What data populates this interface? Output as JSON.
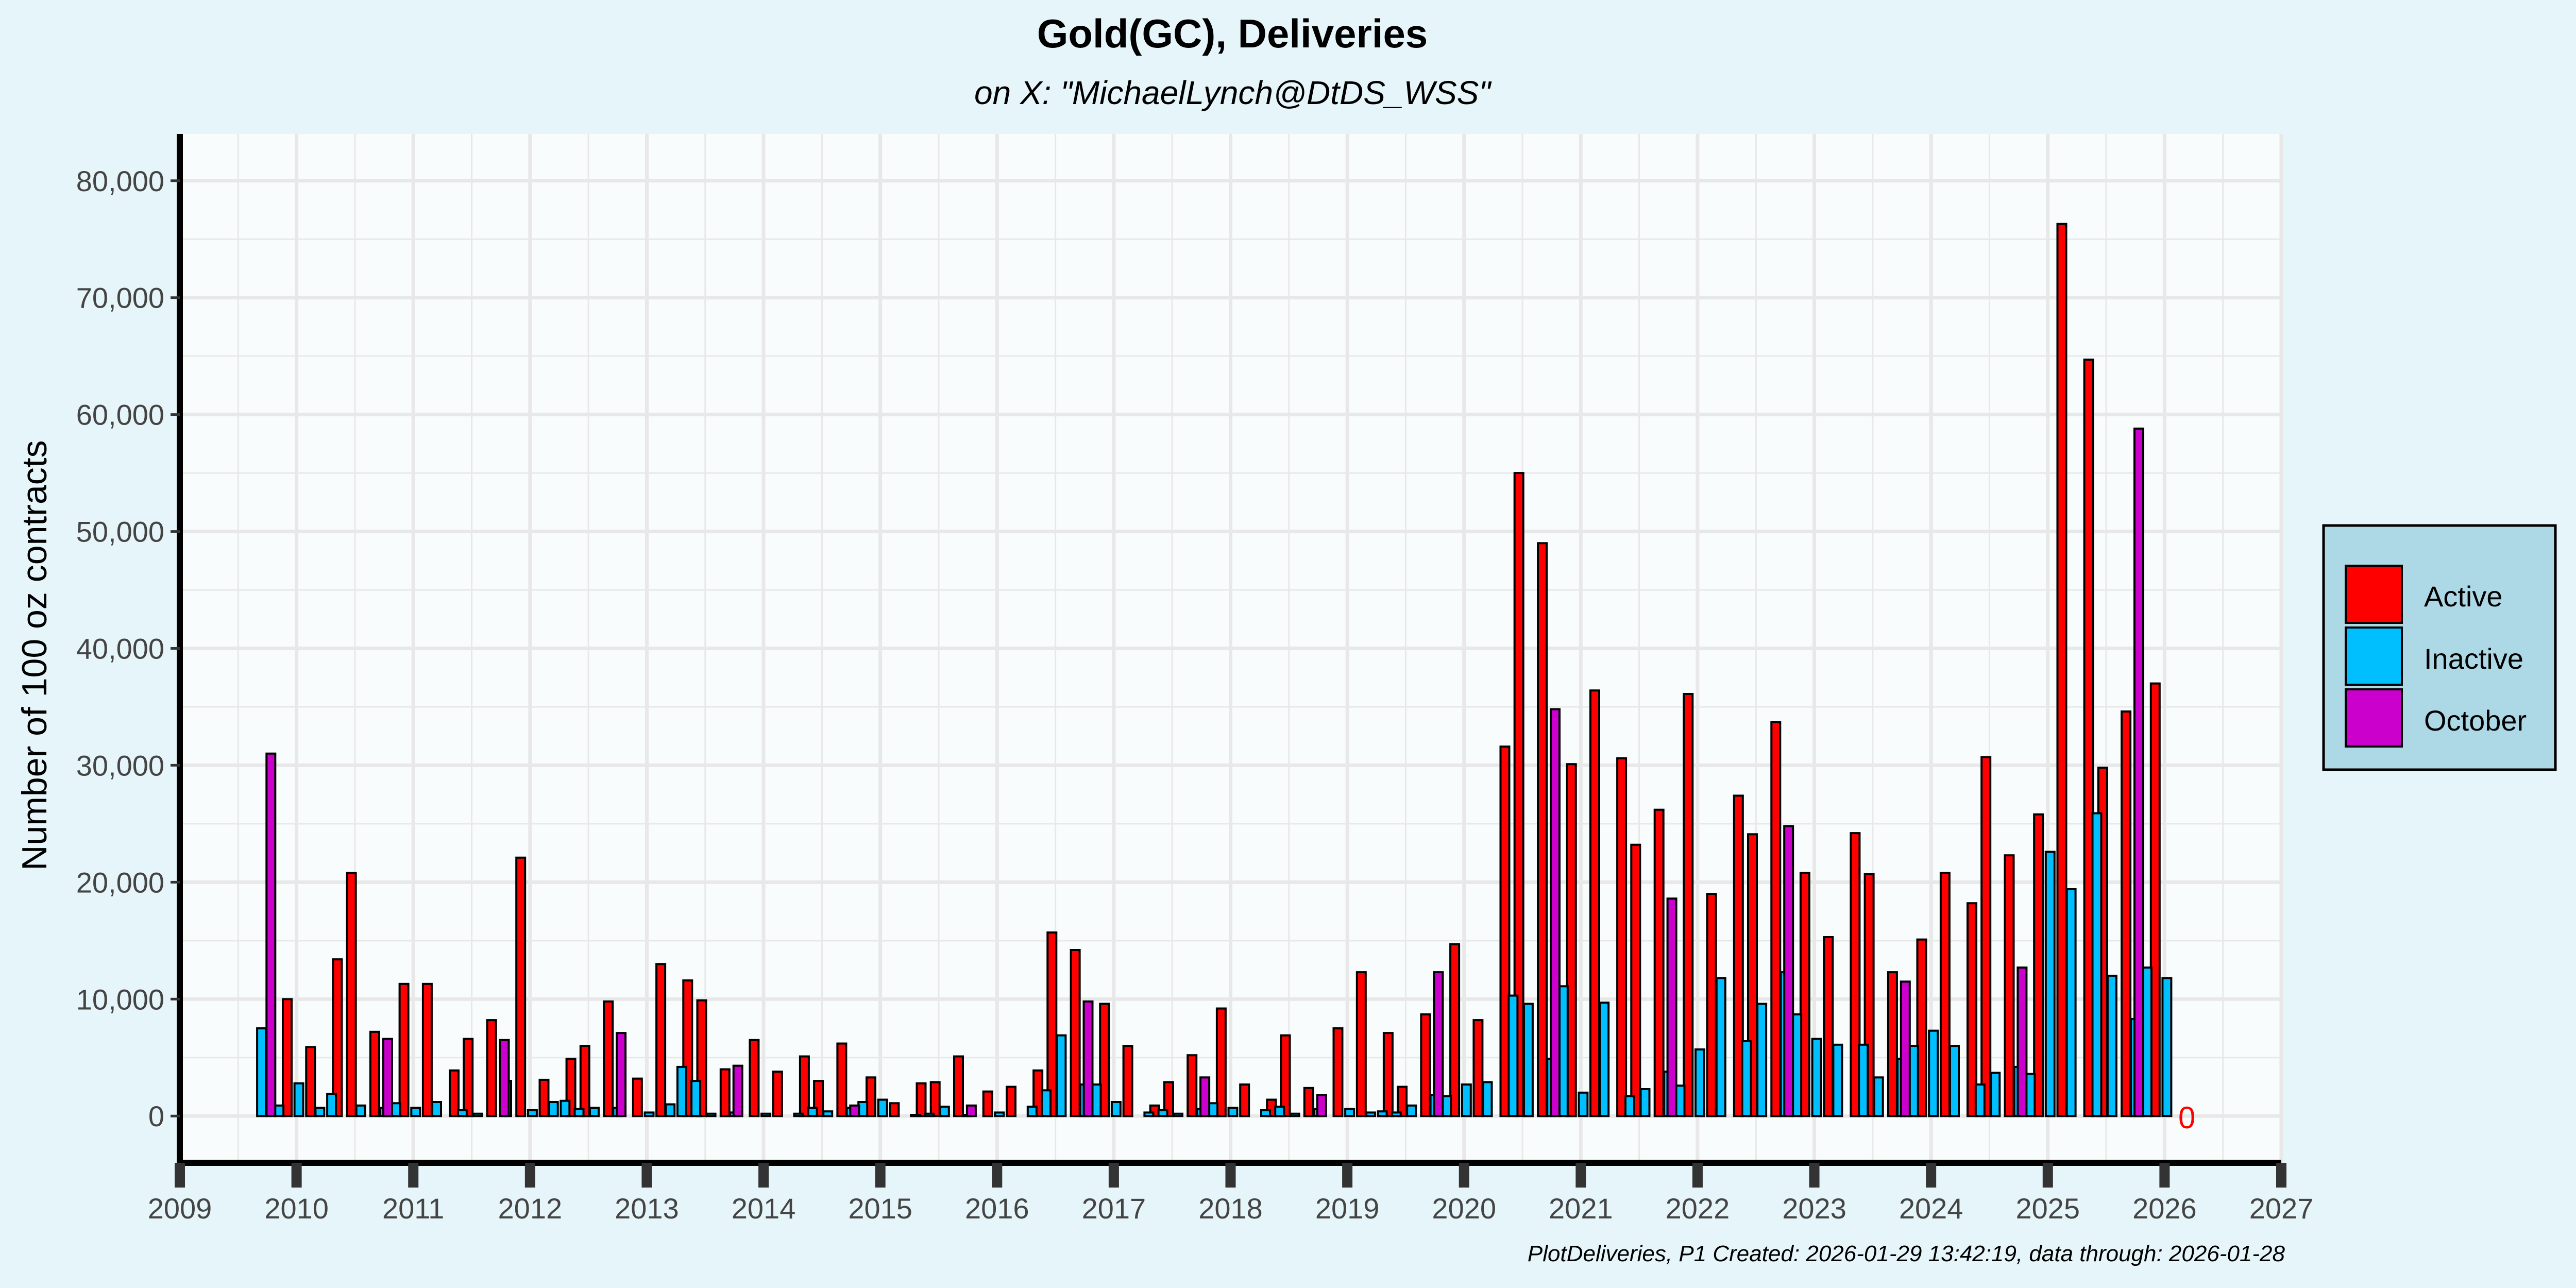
{
  "colors": {
    "page_background": "#e6f5fa",
    "panel_background": "#f8fcfd",
    "grid": "#e8e8e8",
    "legend_background": "#add8e6",
    "active": "#ff0000",
    "inactive": "#00bfff",
    "october": "#cc00cc",
    "end_label": "#ff0000"
  },
  "chart_data": {
    "type": "bar",
    "title": "Gold(GC), Deliveries",
    "subtitle": "on X:   \"MichaelLynch@DtDS_WSS\"",
    "xlabel": "",
    "ylabel": "Number of 100 oz contracts",
    "xlim": [
      2009,
      2027
    ],
    "ylim": [
      -4000,
      84000
    ],
    "x_ticks": [
      2009,
      2010,
      2011,
      2012,
      2013,
      2014,
      2015,
      2016,
      2017,
      2018,
      2019,
      2020,
      2021,
      2022,
      2023,
      2024,
      2025,
      2026,
      2027
    ],
    "x_tick_labels": [
      "2009",
      "2010",
      "2011",
      "2012",
      "2013",
      "2014",
      "2015",
      "2016",
      "2017",
      "2018",
      "2019",
      "2020",
      "2021",
      "2022",
      "2023",
      "2024",
      "2025",
      "2026",
      "2027"
    ],
    "y_ticks": [
      0,
      10000,
      20000,
      30000,
      40000,
      50000,
      60000,
      70000,
      80000
    ],
    "y_tick_labels": [
      "0",
      "10,000",
      "20,000",
      "30,000",
      "40,000",
      "50,000",
      "60,000",
      "70,000",
      "80,000"
    ],
    "grid": true,
    "legend_position": "right",
    "legend": [
      "Active",
      "Inactive",
      "October"
    ],
    "end_label": "0",
    "caption": "PlotDeliveries, P1 Created: 2026-01-29 13:42:19, data through: 2026-01-28",
    "series": [
      {
        "name": "Active",
        "points": [
          [
            2009.92,
            10000
          ],
          [
            2010.12,
            5900
          ],
          [
            2010.35,
            13400
          ],
          [
            2010.47,
            20800
          ],
          [
            2010.67,
            7200
          ],
          [
            2010.92,
            11300
          ],
          [
            2011.12,
            11300
          ],
          [
            2011.35,
            3900
          ],
          [
            2011.47,
            6600
          ],
          [
            2011.67,
            8200
          ],
          [
            2011.92,
            22100
          ],
          [
            2012.12,
            3100
          ],
          [
            2012.35,
            4900
          ],
          [
            2012.47,
            6000
          ],
          [
            2012.67,
            9800
          ],
          [
            2012.92,
            3200
          ],
          [
            2013.12,
            13000
          ],
          [
            2013.35,
            11600
          ],
          [
            2013.47,
            9900
          ],
          [
            2013.67,
            4000
          ],
          [
            2013.92,
            6500
          ],
          [
            2014.12,
            3800
          ],
          [
            2014.35,
            5100
          ],
          [
            2014.47,
            3000
          ],
          [
            2014.67,
            6200
          ],
          [
            2014.92,
            3300
          ],
          [
            2015.12,
            1100
          ],
          [
            2015.35,
            2800
          ],
          [
            2015.47,
            2900
          ],
          [
            2015.67,
            5100
          ],
          [
            2015.92,
            2100
          ],
          [
            2016.12,
            2500
          ],
          [
            2016.35,
            3900
          ],
          [
            2016.47,
            15700
          ],
          [
            2016.67,
            14200
          ],
          [
            2016.92,
            9600
          ],
          [
            2017.12,
            6000
          ],
          [
            2017.35,
            900
          ],
          [
            2017.47,
            2900
          ],
          [
            2017.67,
            5200
          ],
          [
            2017.92,
            9200
          ],
          [
            2018.12,
            2700
          ],
          [
            2018.35,
            1400
          ],
          [
            2018.47,
            6900
          ],
          [
            2018.67,
            2400
          ],
          [
            2018.92,
            7500
          ],
          [
            2019.12,
            12300
          ],
          [
            2019.35,
            7100
          ],
          [
            2019.47,
            2500
          ],
          [
            2019.67,
            8700
          ],
          [
            2019.92,
            14700
          ],
          [
            2020.12,
            8200
          ],
          [
            2020.35,
            31600
          ],
          [
            2020.47,
            55000
          ],
          [
            2020.67,
            49000
          ],
          [
            2020.92,
            30100
          ],
          [
            2021.12,
            36400
          ],
          [
            2021.35,
            30600
          ],
          [
            2021.47,
            23200
          ],
          [
            2021.67,
            26200
          ],
          [
            2021.92,
            36100
          ],
          [
            2022.12,
            19000
          ],
          [
            2022.35,
            27400
          ],
          [
            2022.47,
            24100
          ],
          [
            2022.67,
            33700
          ],
          [
            2022.92,
            20800
          ],
          [
            2023.12,
            15300
          ],
          [
            2023.35,
            24200
          ],
          [
            2023.47,
            20700
          ],
          [
            2023.67,
            12300
          ],
          [
            2023.92,
            15100
          ],
          [
            2024.12,
            20800
          ],
          [
            2024.35,
            18200
          ],
          [
            2024.47,
            30700
          ],
          [
            2024.67,
            22300
          ],
          [
            2024.92,
            25800
          ],
          [
            2025.12,
            76300
          ],
          [
            2025.35,
            64700
          ],
          [
            2025.47,
            29800
          ],
          [
            2025.67,
            34600
          ],
          [
            2025.92,
            37000
          ]
        ]
      },
      {
        "name": "Inactive",
        "points": [
          [
            2009.7,
            7500
          ],
          [
            2009.85,
            900
          ],
          [
            2010.02,
            2800
          ],
          [
            2010.2,
            700
          ],
          [
            2010.3,
            1900
          ],
          [
            2010.55,
            900
          ],
          [
            2010.75,
            700
          ],
          [
            2010.85,
            1100
          ],
          [
            2011.02,
            700
          ],
          [
            2011.2,
            1200
          ],
          [
            2011.42,
            500
          ],
          [
            2011.55,
            200
          ],
          [
            2011.8,
            3000
          ],
          [
            2012.02,
            500
          ],
          [
            2012.2,
            1200
          ],
          [
            2012.3,
            1300
          ],
          [
            2012.42,
            600
          ],
          [
            2012.55,
            700
          ],
          [
            2012.75,
            700
          ],
          [
            2013.02,
            300
          ],
          [
            2013.2,
            1000
          ],
          [
            2013.3,
            4200
          ],
          [
            2013.42,
            3000
          ],
          [
            2013.55,
            200
          ],
          [
            2013.75,
            300
          ],
          [
            2014.02,
            200
          ],
          [
            2014.3,
            200
          ],
          [
            2014.42,
            700
          ],
          [
            2014.55,
            400
          ],
          [
            2014.75,
            700
          ],
          [
            2014.85,
            1200
          ],
          [
            2015.02,
            1400
          ],
          [
            2015.3,
            100
          ],
          [
            2015.42,
            200
          ],
          [
            2015.55,
            800
          ],
          [
            2015.75,
            100
          ],
          [
            2016.02,
            300
          ],
          [
            2016.3,
            800
          ],
          [
            2016.42,
            2200
          ],
          [
            2016.55,
            6900
          ],
          [
            2016.75,
            2700
          ],
          [
            2016.85,
            2700
          ],
          [
            2017.02,
            1200
          ],
          [
            2017.3,
            300
          ],
          [
            2017.42,
            500
          ],
          [
            2017.55,
            200
          ],
          [
            2017.75,
            600
          ],
          [
            2017.85,
            1100
          ],
          [
            2018.02,
            700
          ],
          [
            2018.3,
            500
          ],
          [
            2018.42,
            800
          ],
          [
            2018.55,
            200
          ],
          [
            2018.75,
            600
          ],
          [
            2019.02,
            600
          ],
          [
            2019.2,
            300
          ],
          [
            2019.3,
            400
          ],
          [
            2019.42,
            300
          ],
          [
            2019.55,
            900
          ],
          [
            2019.75,
            1800
          ],
          [
            2019.85,
            1700
          ],
          [
            2020.02,
            2700
          ],
          [
            2020.2,
            2900
          ],
          [
            2020.42,
            10300
          ],
          [
            2020.55,
            9600
          ],
          [
            2020.75,
            4900
          ],
          [
            2020.85,
            11100
          ],
          [
            2021.02,
            2000
          ],
          [
            2021.2,
            9700
          ],
          [
            2021.42,
            1700
          ],
          [
            2021.55,
            2300
          ],
          [
            2021.75,
            3800
          ],
          [
            2021.85,
            2600
          ],
          [
            2022.02,
            5700
          ],
          [
            2022.2,
            11800
          ],
          [
            2022.42,
            6400
          ],
          [
            2022.55,
            9600
          ],
          [
            2022.75,
            12300
          ],
          [
            2022.85,
            8700
          ],
          [
            2023.02,
            6600
          ],
          [
            2023.2,
            6100
          ],
          [
            2023.42,
            6100
          ],
          [
            2023.55,
            3300
          ],
          [
            2023.75,
            4900
          ],
          [
            2023.85,
            6000
          ],
          [
            2024.02,
            7300
          ],
          [
            2024.2,
            6000
          ],
          [
            2024.42,
            2700
          ],
          [
            2024.55,
            3700
          ],
          [
            2024.75,
            4200
          ],
          [
            2024.85,
            3600
          ],
          [
            2025.02,
            22600
          ],
          [
            2025.2,
            19400
          ],
          [
            2025.42,
            25900
          ],
          [
            2025.55,
            12000
          ],
          [
            2025.75,
            8300
          ],
          [
            2025.85,
            12700
          ],
          [
            2026.02,
            11800
          ]
        ]
      },
      {
        "name": "October",
        "points": [
          [
            2009.78,
            31000
          ],
          [
            2010.78,
            6600
          ],
          [
            2011.78,
            6500
          ],
          [
            2012.78,
            7100
          ],
          [
            2013.78,
            4300
          ],
          [
            2014.78,
            900
          ],
          [
            2015.78,
            900
          ],
          [
            2016.78,
            9800
          ],
          [
            2017.78,
            3300
          ],
          [
            2018.78,
            1800
          ],
          [
            2019.78,
            12300
          ],
          [
            2020.78,
            34800
          ],
          [
            2021.78,
            18600
          ],
          [
            2022.78,
            24800
          ],
          [
            2023.78,
            11500
          ],
          [
            2024.78,
            12700
          ],
          [
            2025.78,
            58800
          ]
        ]
      }
    ]
  }
}
